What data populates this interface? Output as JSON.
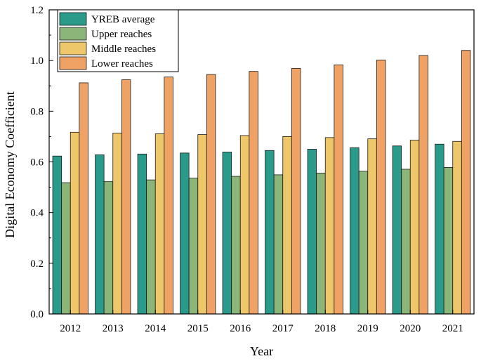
{
  "chart_data": {
    "type": "bar",
    "title": "",
    "xlabel": "Year",
    "ylabel": "Digital Economy Coefficient",
    "ylim": [
      0,
      1.2
    ],
    "yticks": [
      "0.0",
      "0.2",
      "0.4",
      "0.6",
      "0.8",
      "1.0",
      "1.2"
    ],
    "categories": [
      "2012",
      "2013",
      "2014",
      "2015",
      "2016",
      "2017",
      "2018",
      "2019",
      "2020",
      "2021"
    ],
    "legend_position": "top-left",
    "series": [
      {
        "name": "YREB average",
        "color": "#2a9a8a",
        "values": [
          0.623,
          0.628,
          0.631,
          0.635,
          0.639,
          0.645,
          0.65,
          0.656,
          0.663,
          0.67
        ]
      },
      {
        "name": "Upper reaches",
        "color": "#8cb57a",
        "values": [
          0.518,
          0.522,
          0.529,
          0.536,
          0.543,
          0.549,
          0.556,
          0.563,
          0.571,
          0.578
        ]
      },
      {
        "name": "Middle reaches",
        "color": "#eec76a",
        "values": [
          0.717,
          0.714,
          0.711,
          0.708,
          0.704,
          0.7,
          0.696,
          0.691,
          0.686,
          0.681
        ]
      },
      {
        "name": "Lower reaches",
        "color": "#f0a164",
        "values": [
          0.912,
          0.924,
          0.935,
          0.945,
          0.957,
          0.969,
          0.983,
          1.002,
          1.02,
          1.04
        ]
      }
    ]
  }
}
